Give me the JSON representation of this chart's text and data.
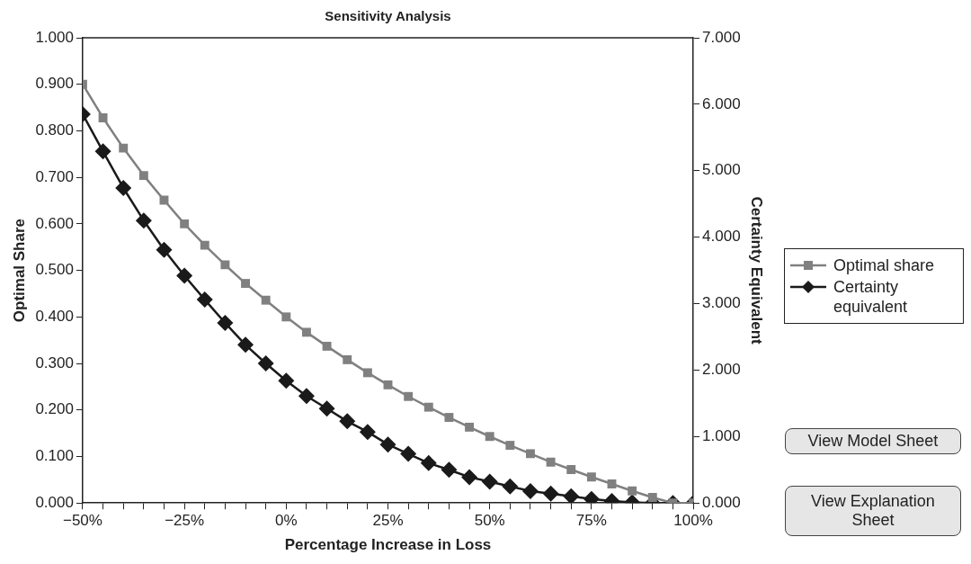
{
  "chart_data": {
    "type": "line",
    "title": "Sensitivity Analysis",
    "xlabel": "Percentage Increase in Loss",
    "ylabel": "Optimal Share",
    "y2label": "Certainty Equivalent",
    "x": [
      -50,
      -45,
      -40,
      -35,
      -30,
      -25,
      -20,
      -15,
      -10,
      -5,
      0,
      5,
      10,
      15,
      20,
      25,
      30,
      35,
      40,
      45,
      50,
      55,
      60,
      65,
      70,
      75,
      80,
      85,
      90,
      95,
      100
    ],
    "series": [
      {
        "name": "Optimal share",
        "color": "#808080",
        "marker": "square",
        "values": [
          0.9,
          0.828,
          0.763,
          0.704,
          0.651,
          0.6,
          0.554,
          0.512,
          0.472,
          0.436,
          0.4,
          0.367,
          0.337,
          0.308,
          0.28,
          0.254,
          0.229,
          0.206,
          0.184,
          0.163,
          0.143,
          0.124,
          0.106,
          0.088,
          0.072,
          0.056,
          0.041,
          0.026,
          0.012,
          0.0,
          0.0
        ]
      },
      {
        "name": "Certainty equivalent",
        "color": "#1a1a1a",
        "marker": "diamond",
        "axis": "y2",
        "values": [
          5.85,
          5.29,
          4.74,
          4.25,
          3.81,
          3.42,
          3.06,
          2.71,
          2.38,
          2.1,
          1.84,
          1.61,
          1.42,
          1.23,
          1.07,
          0.88,
          0.74,
          0.6,
          0.5,
          0.39,
          0.32,
          0.25,
          0.18,
          0.14,
          0.1,
          0.06,
          0.03,
          0.01,
          0.0,
          0.0,
          0.0
        ]
      }
    ],
    "xlim": [
      -50,
      100
    ],
    "xticks": [
      {
        "value": -50,
        "label": "−50%"
      },
      {
        "value": -45,
        "label": null
      },
      {
        "value": -40,
        "label": null
      },
      {
        "value": -35,
        "label": null
      },
      {
        "value": -30,
        "label": null
      },
      {
        "value": -25,
        "label": "−25%"
      },
      {
        "value": -20,
        "label": null
      },
      {
        "value": -15,
        "label": null
      },
      {
        "value": -10,
        "label": null
      },
      {
        "value": -5,
        "label": null
      },
      {
        "value": 0,
        "label": "0%"
      },
      {
        "value": 5,
        "label": null
      },
      {
        "value": 10,
        "label": null
      },
      {
        "value": 15,
        "label": null
      },
      {
        "value": 20,
        "label": null
      },
      {
        "value": 25,
        "label": "25%"
      },
      {
        "value": 30,
        "label": null
      },
      {
        "value": 35,
        "label": null
      },
      {
        "value": 40,
        "label": null
      },
      {
        "value": 45,
        "label": null
      },
      {
        "value": 50,
        "label": "50%"
      },
      {
        "value": 55,
        "label": null
      },
      {
        "value": 60,
        "label": null
      },
      {
        "value": 65,
        "label": null
      },
      {
        "value": 70,
        "label": null
      },
      {
        "value": 75,
        "label": "75%"
      },
      {
        "value": 80,
        "label": null
      },
      {
        "value": 85,
        "label": null
      },
      {
        "value": 90,
        "label": null
      },
      {
        "value": 95,
        "label": null
      },
      {
        "value": 100,
        "label": "100%"
      }
    ],
    "ylim": [
      0,
      1
    ],
    "yticks": [
      {
        "value": 0,
        "label": "0.000"
      },
      {
        "value": 0.1,
        "label": "0.100"
      },
      {
        "value": 0.2,
        "label": "0.200"
      },
      {
        "value": 0.3,
        "label": "0.300"
      },
      {
        "value": 0.4,
        "label": "0.400"
      },
      {
        "value": 0.5,
        "label": "0.500"
      },
      {
        "value": 0.6,
        "label": "0.600"
      },
      {
        "value": 0.7,
        "label": "0.700"
      },
      {
        "value": 0.8,
        "label": "0.800"
      },
      {
        "value": 0.9,
        "label": "0.900"
      },
      {
        "value": 1,
        "label": "1.000"
      }
    ],
    "y2lim": [
      0,
      7
    ],
    "y2ticks": [
      {
        "value": 0,
        "label": "0.000"
      },
      {
        "value": 1,
        "label": "1.000"
      },
      {
        "value": 2,
        "label": "2.000"
      },
      {
        "value": 3,
        "label": "3.000"
      },
      {
        "value": 4,
        "label": "4.000"
      },
      {
        "value": 5,
        "label": "5.000"
      },
      {
        "value": 6,
        "label": "6.000"
      },
      {
        "value": 7,
        "label": "7.000"
      }
    ],
    "legend": "right",
    "grid": false,
    "annotations": [
      "View Model Sheet",
      "View Explanation Sheet"
    ]
  }
}
